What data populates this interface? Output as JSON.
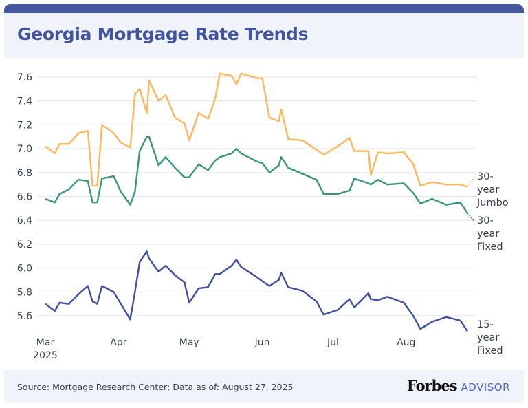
{
  "header": {
    "title": "Georgia Mortgage Rate Trends"
  },
  "footer": {
    "source": "Source: Mortgage Research Center; Data as of: August 27, 2025",
    "logo_main": "Forbes",
    "logo_sub": "ADVISOR"
  },
  "colors": {
    "accent": "#4254a0",
    "jumbo": "#fdb85c",
    "fixed30": "#3a9679",
    "fixed15": "#3f4f9f",
    "grid": "#e4e5e9"
  },
  "chart_data": {
    "type": "line",
    "title": "Georgia Mortgage Rate Trends",
    "xlabel": "",
    "ylabel": "",
    "ylim": [
      5.5,
      7.7
    ],
    "yticks": [
      "7.6",
      "7.4",
      "7.2",
      "7.0",
      "6.8",
      "6.6",
      "6.4",
      "6.2",
      "6.0",
      "5.8",
      "5.6"
    ],
    "xticks": [
      {
        "date": "2025-03-01",
        "label": "Mar",
        "sub": "2025"
      },
      {
        "date": "2025-04-01",
        "label": "Apr",
        "sub": ""
      },
      {
        "date": "2025-05-01",
        "label": "May",
        "sub": ""
      },
      {
        "date": "2025-06-01",
        "label": "Jun",
        "sub": ""
      },
      {
        "date": "2025-07-01",
        "label": "Jul",
        "sub": ""
      },
      {
        "date": "2025-08-01",
        "label": "Aug",
        "sub": ""
      }
    ],
    "grid": true,
    "legend": "end-of-line labels",
    "x": [
      "2025-03-01",
      "2025-03-05",
      "2025-03-07",
      "2025-03-11",
      "2025-03-15",
      "2025-03-19",
      "2025-03-21",
      "2025-03-23",
      "2025-03-25",
      "2025-03-30",
      "2025-04-02",
      "2025-04-06",
      "2025-04-08",
      "2025-04-10",
      "2025-04-13",
      "2025-04-14",
      "2025-04-18",
      "2025-04-21",
      "2025-04-25",
      "2025-04-29",
      "2025-05-01",
      "2025-05-05",
      "2025-05-09",
      "2025-05-12",
      "2025-05-14",
      "2025-05-19",
      "2025-05-21",
      "2025-05-23",
      "2025-05-30",
      "2025-06-01",
      "2025-06-04",
      "2025-06-08",
      "2025-06-09",
      "2025-06-12",
      "2025-06-18",
      "2025-06-24",
      "2025-06-27",
      "2025-07-03",
      "2025-07-08",
      "2025-07-10",
      "2025-07-16",
      "2025-07-17",
      "2025-07-20",
      "2025-07-24",
      "2025-07-31",
      "2025-08-04",
      "2025-08-07",
      "2025-08-12",
      "2025-08-18",
      "2025-08-24",
      "2025-08-27"
    ],
    "series": [
      {
        "name": "30-year Jumbo",
        "color": "#fdb85c",
        "values": [
          7.02,
          6.96,
          7.04,
          7.04,
          7.13,
          7.15,
          6.69,
          6.69,
          7.2,
          7.13,
          7.05,
          7.01,
          7.46,
          7.5,
          7.3,
          7.57,
          7.4,
          7.45,
          7.26,
          7.21,
          7.07,
          7.3,
          7.25,
          7.42,
          7.63,
          7.61,
          7.54,
          7.63,
          7.59,
          7.59,
          7.26,
          7.23,
          7.33,
          7.08,
          7.07,
          6.99,
          6.95,
          7.02,
          7.09,
          6.98,
          6.98,
          6.78,
          6.97,
          6.96,
          6.97,
          6.87,
          6.69,
          6.72,
          6.7,
          6.7,
          6.68
        ]
      },
      {
        "name": "30-year Fixed",
        "color": "#3a9679",
        "values": [
          6.58,
          6.55,
          6.62,
          6.66,
          6.74,
          6.73,
          6.55,
          6.55,
          6.75,
          6.77,
          6.64,
          6.53,
          6.64,
          6.98,
          7.1,
          7.1,
          6.86,
          6.93,
          6.84,
          6.76,
          6.76,
          6.87,
          6.82,
          6.9,
          6.93,
          6.96,
          7.0,
          6.96,
          6.89,
          6.88,
          6.8,
          6.86,
          6.93,
          6.84,
          6.79,
          6.74,
          6.62,
          6.62,
          6.65,
          6.75,
          6.71,
          6.7,
          6.74,
          6.7,
          6.71,
          6.63,
          6.54,
          6.58,
          6.53,
          6.55,
          6.46
        ]
      },
      {
        "name": "15-year Fixed",
        "color": "#3f4f9f",
        "values": [
          5.7,
          5.64,
          5.71,
          5.7,
          5.78,
          5.85,
          5.72,
          5.7,
          5.85,
          5.8,
          5.7,
          5.57,
          5.8,
          6.05,
          6.14,
          6.08,
          5.97,
          6.02,
          5.94,
          5.88,
          5.71,
          5.83,
          5.84,
          5.95,
          5.95,
          6.02,
          6.07,
          6.01,
          5.92,
          5.89,
          5.85,
          5.9,
          5.96,
          5.84,
          5.81,
          5.72,
          5.61,
          5.65,
          5.74,
          5.67,
          5.79,
          5.74,
          5.73,
          5.76,
          5.71,
          5.6,
          5.49,
          5.55,
          5.59,
          5.56,
          5.47
        ]
      }
    ]
  }
}
